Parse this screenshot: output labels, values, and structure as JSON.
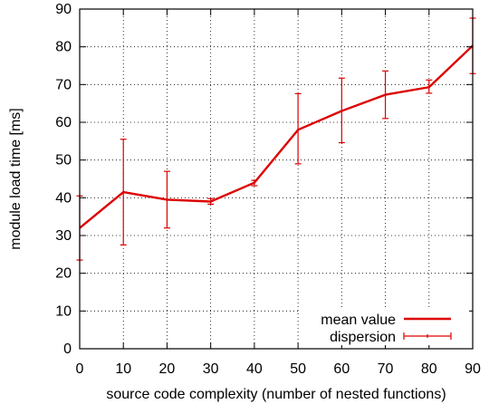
{
  "chart_data": {
    "type": "line",
    "xlabel": "source code complexity (number of nested functions)",
    "ylabel": "module load time [ms]",
    "xlim": [
      0,
      90
    ],
    "ylim": [
      0,
      90
    ],
    "xticks": [
      0,
      10,
      20,
      30,
      40,
      50,
      60,
      70,
      80,
      90
    ],
    "yticks": [
      0,
      10,
      20,
      30,
      40,
      50,
      60,
      70,
      80,
      90
    ],
    "grid": true,
    "legend_position": "bottom-right",
    "series": [
      {
        "name": "mean value",
        "x": [
          0,
          10,
          20,
          30,
          40,
          50,
          60,
          70,
          80,
          90
        ],
        "y": [
          32,
          41.5,
          39.5,
          39,
          44,
          58,
          63,
          67.3,
          69.3,
          80.3
        ]
      },
      {
        "name": "dispersion",
        "x": [
          0,
          10,
          20,
          30,
          40,
          50,
          60,
          70,
          80,
          90
        ],
        "low": [
          23.5,
          27.5,
          32,
          38.3,
          43.2,
          49,
          54.6,
          61,
          67.7,
          72.9
        ],
        "high": [
          40.5,
          55.5,
          47,
          39.8,
          44.6,
          67.6,
          71.7,
          73.6,
          71.2,
          87.6
        ]
      }
    ],
    "colors": {
      "line": "#dd0000",
      "axes": "#000000"
    }
  }
}
